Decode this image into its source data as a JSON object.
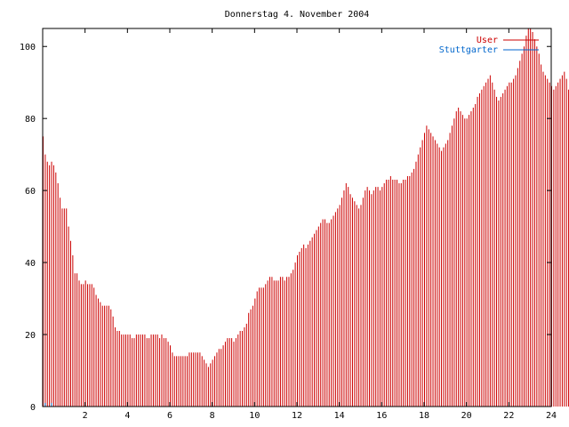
{
  "chart_data": {
    "type": "bar",
    "title": "Donnerstag 4. November 2004",
    "xlabel": "",
    "ylabel": "",
    "xlim": [
      0,
      24
    ],
    "ylim": [
      0,
      105
    ],
    "x_ticks": [
      "2",
      "4",
      "6",
      "8",
      "10",
      "12",
      "14",
      "16",
      "18",
      "20",
      "22",
      "24"
    ],
    "y_ticks": [
      "0",
      "20",
      "40",
      "60",
      "80",
      "100"
    ],
    "grid": false,
    "legend_position": "top-right",
    "x_step": 0.1,
    "series": [
      {
        "name": "User",
        "color": "#cc0000",
        "values": [
          75,
          70,
          68,
          67,
          68,
          67,
          65,
          62,
          58,
          55,
          55,
          55,
          50,
          46,
          42,
          37,
          37,
          35,
          34,
          34,
          35,
          34,
          34,
          34,
          33,
          31,
          30,
          29,
          28,
          28,
          28,
          28,
          27,
          25,
          22,
          21,
          21,
          20,
          20,
          20,
          20,
          20,
          19,
          19,
          20,
          20,
          20,
          20,
          20,
          19,
          19,
          20,
          20,
          20,
          20,
          19,
          20,
          19,
          19,
          18,
          17,
          15,
          14,
          14,
          14,
          14,
          14,
          14,
          14,
          15,
          15,
          15,
          15,
          15,
          15,
          14,
          13,
          12,
          11,
          12,
          13,
          14,
          15,
          16,
          16,
          17,
          18,
          19,
          19,
          19,
          18,
          19,
          20,
          21,
          21,
          22,
          23,
          26,
          27,
          28,
          30,
          32,
          33,
          33,
          33,
          34,
          35,
          36,
          36,
          35,
          35,
          35,
          36,
          36,
          35,
          36,
          36,
          37,
          38,
          40,
          42,
          43,
          44,
          45,
          44,
          45,
          46,
          47,
          48,
          49,
          50,
          51,
          52,
          52,
          51,
          51,
          52,
          53,
          54,
          55,
          56,
          58,
          60,
          62,
          61,
          59,
          58,
          57,
          56,
          55,
          56,
          58,
          60,
          61,
          60,
          59,
          60,
          61,
          61,
          60,
          61,
          62,
          63,
          63,
          64,
          63,
          63,
          63,
          62,
          62,
          63,
          63,
          64,
          64,
          65,
          66,
          68,
          70,
          72,
          74,
          76,
          78,
          77,
          76,
          75,
          74,
          73,
          72,
          71,
          72,
          73,
          74,
          76,
          78,
          80,
          82,
          83,
          82,
          81,
          80,
          80,
          81,
          82,
          83,
          84,
          86,
          87,
          88,
          89,
          90,
          91,
          92,
          90,
          88,
          86,
          85,
          86,
          87,
          88,
          89,
          90,
          90,
          91,
          92,
          94,
          96,
          98,
          100,
          103,
          105,
          105,
          104,
          102,
          100,
          98,
          95,
          93,
          92,
          91,
          90,
          89,
          88,
          89,
          90,
          91,
          92,
          93,
          91,
          88,
          84,
          80,
          77,
          74,
          71,
          70
        ]
      },
      {
        "name": "Stuttgarter",
        "color": "#0066cc",
        "values": [
          0,
          1,
          0,
          0,
          1,
          0,
          0,
          0,
          0,
          0,
          0,
          0,
          0,
          0,
          0,
          0,
          0,
          0,
          0,
          0,
          0,
          0,
          0,
          0,
          0,
          0,
          0,
          0,
          0,
          0,
          0,
          0,
          0,
          0,
          0,
          0,
          0,
          0,
          0,
          0,
          0,
          0,
          0,
          0,
          0,
          0,
          0,
          0,
          0,
          0,
          0,
          0,
          0,
          0,
          0,
          0,
          0,
          0,
          0,
          0,
          0,
          0,
          0,
          0,
          0,
          0,
          0,
          0,
          0,
          0,
          0,
          0,
          0,
          0,
          0,
          0,
          0,
          0,
          0,
          0,
          0,
          0,
          0,
          0,
          0,
          0,
          0,
          0,
          0,
          0,
          0,
          0,
          0,
          0,
          0,
          0,
          0,
          0,
          0,
          0,
          0,
          0,
          0,
          0,
          0,
          0,
          0,
          0,
          0,
          0,
          0,
          0,
          0,
          0,
          0,
          0,
          0,
          0,
          0,
          0,
          0,
          0,
          0,
          0,
          0,
          0,
          0,
          0,
          0,
          0,
          0,
          0,
          0,
          0,
          0,
          0,
          0,
          0,
          0,
          0,
          0,
          0,
          0,
          0,
          0,
          0,
          0,
          0,
          0,
          0,
          0,
          0,
          0,
          0,
          0,
          0,
          0,
          0,
          0,
          0,
          0,
          0,
          0,
          0,
          0,
          0,
          0,
          0,
          0,
          0,
          0,
          0,
          0,
          0,
          0,
          0,
          0,
          0,
          0,
          0,
          0,
          0,
          0,
          0,
          0,
          0,
          0,
          0,
          0,
          0,
          0,
          0,
          0,
          0,
          0,
          0,
          0,
          0,
          0,
          0,
          0,
          0,
          0,
          0,
          0,
          0,
          0,
          0,
          0,
          0,
          0,
          0,
          0,
          0,
          0,
          0,
          0,
          0,
          0,
          0,
          0,
          0,
          0,
          0,
          0,
          0,
          0,
          0,
          0,
          0,
          0,
          0,
          0,
          0,
          0,
          0,
          0,
          0,
          0,
          0,
          0,
          0,
          0,
          0,
          0,
          0,
          0,
          0,
          0,
          0,
          0,
          0,
          0,
          0,
          0,
          0,
          0,
          0,
          0,
          0,
          0,
          0,
          0,
          0,
          0,
          0,
          0,
          0,
          0,
          0,
          0,
          0,
          0,
          0,
          0,
          0
        ]
      }
    ]
  }
}
